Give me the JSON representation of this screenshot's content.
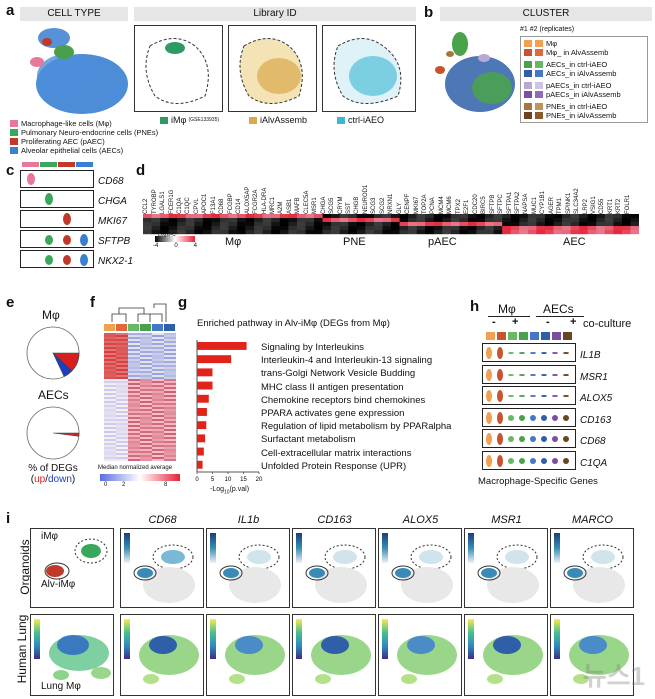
{
  "panels": {
    "a": {
      "letter": "a",
      "title_celltype": "CELL TYPE",
      "title_library": "Library ID",
      "legend": [
        {
          "label": "Macrophage-like cells (Mφ)",
          "color": "#e8779a"
        },
        {
          "label": "Pulmonary Neuro-endocrine cells (PNEs)",
          "color": "#3aa85a"
        },
        {
          "label": "Proliferating AEC (pAEC)",
          "color": "#c0392b"
        },
        {
          "label": "Alveolar epithelial cells (AECs)",
          "color": "#3a7fd1"
        }
      ],
      "library_legend": [
        {
          "label": "iMφ",
          "note": "(GSE133935)",
          "color": "#2e9a63"
        },
        {
          "label": "iAlvAssemb",
          "color": "#d9a94c"
        },
        {
          "label": "ctrl-iAEO",
          "color": "#3ab6d6"
        }
      ]
    },
    "b": {
      "letter": "b",
      "title": "CLUSTER",
      "replicates_label": "#1 #2 (replicates)",
      "legend": [
        {
          "label": "Mφ",
          "c1": "#f0a050",
          "c2": "#f0a050"
        },
        {
          "label": "Mφ_ in AlvAssemb",
          "c1": "#c8542f",
          "c2": "#e0683a"
        },
        {
          "label": "AECs_in ctrl-iAEO",
          "c1": "#4aa34a",
          "c2": "#68b86a"
        },
        {
          "label": "AECs_in iAlvAssemb",
          "c1": "#2f5fa8",
          "c2": "#4378c4"
        },
        {
          "label": "pAECs_in ctrl-iAEO",
          "c1": "#b8a8d8",
          "c2": "#d0c4e6"
        },
        {
          "label": "pAECs_in iAlvAssemb",
          "c1": "#7a4fa3",
          "c2": "#9469ba"
        },
        {
          "label": "PNEs_in ctrl-iAEO",
          "c1": "#a8763d",
          "c2": "#c49158"
        },
        {
          "label": "PNEs_in iAlvAssemb",
          "c1": "#6b4420",
          "c2": "#8a5b2e"
        }
      ]
    },
    "c": {
      "letter": "c",
      "genes": [
        "CD68",
        "CHGA",
        "MKI67",
        "SFTPB",
        "NKX2-1"
      ],
      "top_colors": [
        "#e8779a",
        "#3aa85a",
        "#c0392b",
        "#3a7fd1"
      ]
    },
    "d": {
      "letter": "d",
      "genes": [
        "CCL2",
        "TYROBP",
        "LGALS1",
        "FCER1G",
        "C1QA",
        "C1QC",
        "CPVL",
        "APOC1",
        "F13A1",
        "CD68",
        "FCGBP",
        "CD14",
        "ALOX5AP",
        "FCGR2A",
        "HLA-DRA",
        "MRC1",
        "A2M",
        "ASB1",
        "MAFB",
        "CLEC5A",
        "MSR1",
        "CHGA",
        "SCG5",
        "CRYM",
        "SST",
        "CHGB",
        "NEUROD1",
        "SCG3",
        "SCG2",
        "NRXN1",
        "GLY",
        "CENPF",
        "MKI67",
        "TOP2A",
        "PCNA",
        "MCM4",
        "MCM6",
        "TPX2",
        "E2F1",
        "CDC20",
        "BIRC5",
        "SFTPB",
        "SFTPC",
        "SFTPA1",
        "SFTPA2",
        "NAPSA",
        "MUC1",
        "CYP1B1",
        "AGER",
        "TPM1",
        "SPINK1",
        "SLC34A2",
        "LRP2",
        "VSIG1",
        "CD55",
        "KRT1",
        "KRT2",
        "FOLR1"
      ],
      "groups": [
        "Mφ",
        "PNE",
        "pAEC",
        "AEC"
      ],
      "colorbar_label": "Log2FC",
      "colorbar_ticks": [
        "-4",
        "0",
        "4"
      ]
    },
    "e": {
      "letter": "e",
      "pie1_title": "Mφ",
      "pie2_title": "AECs",
      "caption_line1": "% of DEGs",
      "caption_up": "up",
      "caption_sep": "/",
      "caption_down": "down",
      "pie1_up": 0.12,
      "pie1_down": 0.06,
      "pie2_up": 0.02,
      "pie2_down": 0.0
    },
    "f": {
      "letter": "f",
      "colorbar_label": "Median normalized average",
      "colorbar_ticks": [
        "0",
        "2",
        "8"
      ]
    },
    "g": {
      "letter": "g",
      "title": "Enriched pathway in Alv-iMφ (DEGs from Mφ)",
      "xlabel_pre": "-Log",
      "xlabel_sub": "10",
      "xlabel_post": "(p.val)",
      "xticks": [
        "0",
        "5",
        "10",
        "15",
        "20"
      ],
      "pathways": [
        "Signaling by Interleukins",
        "Interleukin-4 and Interleukin-13 signaling",
        "trans-Golgi Network Vesicle Budding",
        "MHC class II antigen presentation",
        "Chemokine receptors bind chemokines",
        "PPARA activates gene expression",
        "Regulation of lipid metabolism by PPARalpha",
        "Surfactant metabolism",
        "Cell-extracellular matrix interactions",
        "Unfolded Protein Response (UPR)"
      ],
      "values": [
        16,
        11,
        5,
        5,
        3.8,
        3.2,
        3,
        2.6,
        2.2,
        1.8
      ]
    },
    "h": {
      "letter": "h",
      "group1": "Mφ",
      "group2": "AECs",
      "coculture": "co-culture",
      "signs": [
        "-",
        "+",
        "-",
        "+"
      ],
      "genes": [
        "IL1B",
        "MSR1",
        "ALOX5",
        "CD163",
        "CD68",
        "C1QA"
      ],
      "caption": "Macrophage-Specific Genes"
    },
    "i": {
      "letter": "i",
      "row1": "Organoids",
      "row2": "Human Lung",
      "imf": "iMφ",
      "alv": "Alv-iMφ",
      "lung": "Lung Mφ",
      "cols": [
        "CD68",
        "IL1b",
        "CD163",
        "ALOX5",
        "MSR1",
        "MARCO"
      ],
      "scale_ticks": [
        "2.0",
        "1.5",
        "1.0",
        "0.5",
        "0.0"
      ]
    }
  },
  "watermark": "뉴스1"
}
